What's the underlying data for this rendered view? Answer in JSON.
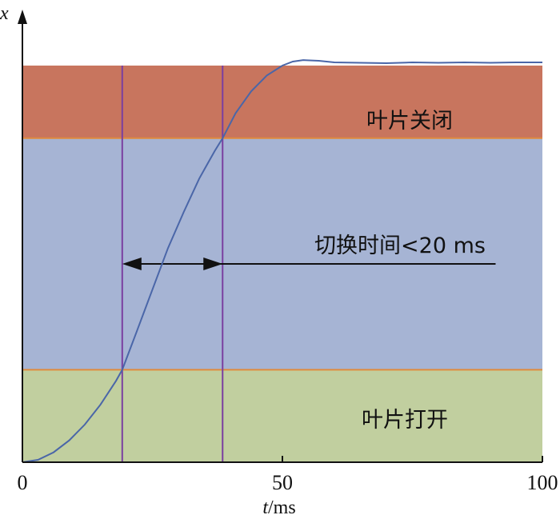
{
  "chart_data": {
    "type": "line",
    "x_axis": {
      "label_var": "t",
      "label_unit": "/ms",
      "range": [
        0,
        100
      ],
      "ticks": [
        0,
        50,
        100
      ]
    },
    "y_axis": {
      "label": "x",
      "tick_labels": false
    },
    "zones": [
      {
        "name": "叶片关闭",
        "from": 0.817,
        "to": 1.0,
        "color": "#c8755e"
      },
      {
        "name": "",
        "from": 0.233,
        "to": 0.817,
        "color": "#a6b4d4"
      },
      {
        "name": "叶片打开",
        "from": 0.0,
        "to": 0.233,
        "color": "#c1cf9f"
      }
    ],
    "vertical_markers": [
      19.2,
      38.5
    ],
    "annotation": {
      "label": "切换时间<20 ms",
      "from_x": 19.2,
      "to_x": 38.5,
      "line_end_x": 91
    },
    "series": [
      {
        "color": "#4a66a8",
        "x": [
          0,
          3,
          6,
          9,
          12,
          15,
          18,
          19.2,
          22,
          25,
          28,
          31,
          34,
          37,
          38.5,
          41,
          44,
          47,
          50,
          52,
          54,
          57,
          60,
          65,
          70,
          75,
          80,
          85,
          90,
          95,
          100
        ],
        "y": [
          0.0,
          0.006,
          0.025,
          0.055,
          0.095,
          0.145,
          0.205,
          0.233,
          0.33,
          0.435,
          0.54,
          0.63,
          0.715,
          0.785,
          0.817,
          0.88,
          0.935,
          0.975,
          1.0,
          1.01,
          1.014,
          1.012,
          1.008,
          1.007,
          1.006,
          1.008,
          1.007,
          1.008,
          1.007,
          1.008,
          1.008
        ]
      }
    ]
  }
}
